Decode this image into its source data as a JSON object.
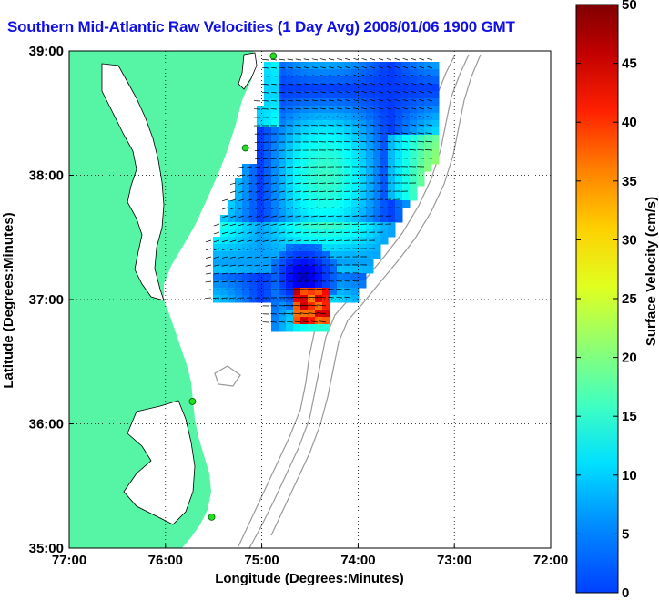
{
  "title": "Southern Mid-Atlantic Raw Velocities (1 Day Avg) 2008/01/06 1900 GMT",
  "chart_data": {
    "type": "heatmap",
    "xlabel": "Longitude (Degrees:Minutes)",
    "ylabel": "Latitude (Degrees:Minutes)",
    "x_ticks": [
      "77:00",
      "76:00",
      "75:00",
      "74:00",
      "73:00",
      "72:00"
    ],
    "y_ticks": [
      "39:00",
      "38:00",
      "37:00",
      "36:00",
      "35:00"
    ],
    "xlim": [
      -77,
      -72
    ],
    "ylim": [
      35,
      39
    ],
    "grid": true,
    "colorbar": {
      "label": "Surface Velocity (cm/s)",
      "ticks": [
        "0",
        "5",
        "10",
        "15",
        "20",
        "25",
        "30",
        "35",
        "40",
        "45",
        "50"
      ],
      "range": [
        0,
        50
      ],
      "colormap": "jet"
    },
    "land_color": "#55f5a5",
    "stations": [
      {
        "lon": -74.88,
        "lat": 38.96
      },
      {
        "lon": -75.17,
        "lat": 38.22
      },
      {
        "lon": -75.72,
        "lat": 36.18
      },
      {
        "lon": -75.52,
        "lat": 35.25
      }
    ]
  }
}
